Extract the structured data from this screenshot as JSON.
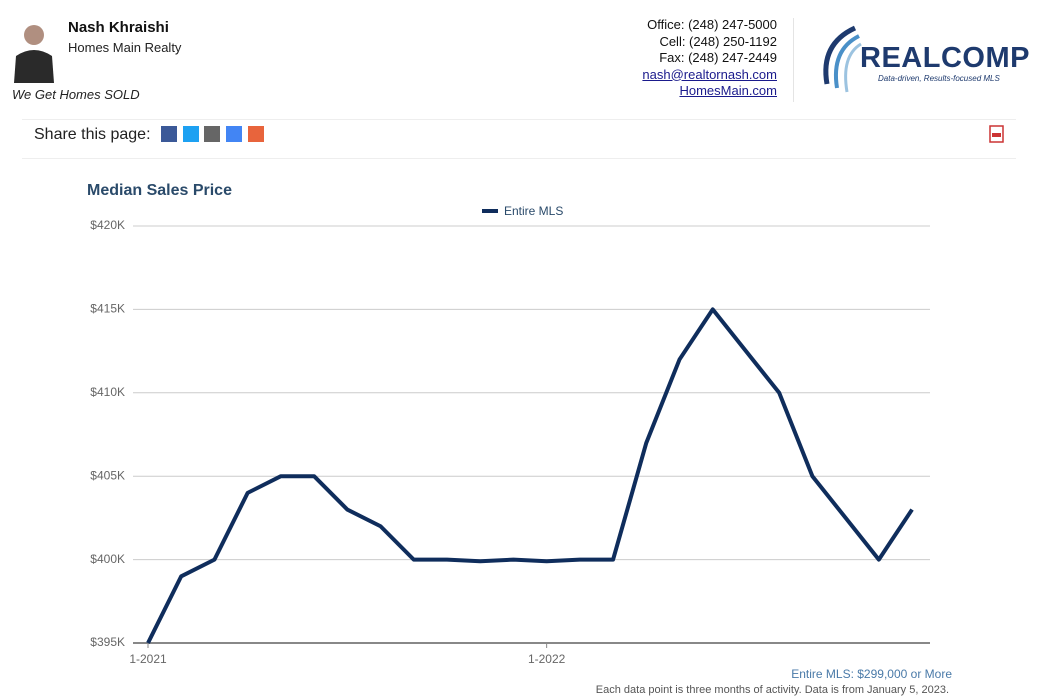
{
  "header": {
    "name": "Nash Khraishi",
    "company": "Homes Main Realty",
    "tagline": "We Get Homes SOLD",
    "office": "Office: (248) 247-5000",
    "cell": "Cell: (248) 250-1192",
    "fax": "Fax: (248) 247-2449",
    "email": "nash@realtornash.com",
    "website": "HomesMain.com",
    "logo": "REALCOMP",
    "logo_tagline": "Data-driven, Results-focused MLS",
    "share_label": "Share this page:"
  },
  "chart_data": {
    "type": "line",
    "title": "Median Sales Price",
    "categories": [
      "1-2021",
      null,
      null,
      null,
      null,
      null,
      null,
      null,
      null,
      null,
      null,
      null,
      "1-2022",
      null,
      null,
      null,
      null,
      null,
      null,
      null,
      null,
      null,
      null,
      null
    ],
    "series": [
      {
        "name": "Entire MLS",
        "color": "#0f2d5c",
        "values": [
          395000,
          399000,
          400000,
          404000,
          405000,
          405000,
          403000,
          402000,
          400000,
          400000,
          399900,
          400000,
          399900,
          400000,
          400000,
          407000,
          412000,
          415000,
          412500,
          410000,
          405000,
          402500,
          400000,
          403000
        ]
      }
    ],
    "ylim": [
      395000,
      420000
    ],
    "yticks": [
      {
        "value": 395000,
        "label": "$395K"
      },
      {
        "value": 400000,
        "label": "$400K"
      },
      {
        "value": 405000,
        "label": "$405K"
      },
      {
        "value": 410000,
        "label": "$410K"
      },
      {
        "value": 415000,
        "label": "$415K"
      },
      {
        "value": 420000,
        "label": "$420K"
      }
    ],
    "grid": true,
    "legend": "top"
  },
  "footer": {
    "filter": "Entire MLS: $299,000 or More",
    "note": "Each data point is three months of activity. Data is from January 5, 2023."
  }
}
